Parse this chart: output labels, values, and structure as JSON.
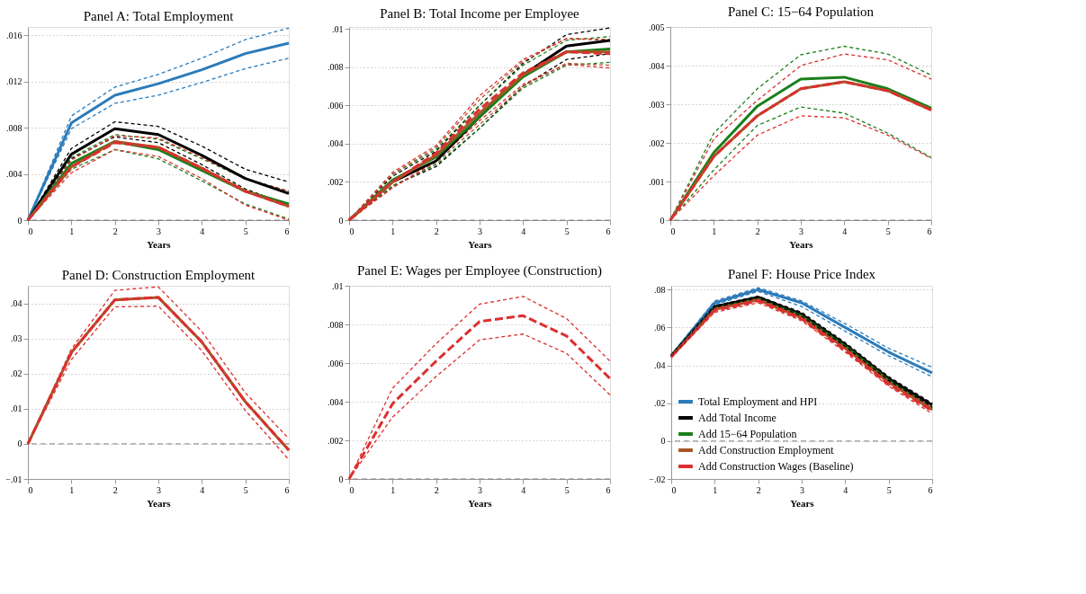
{
  "chart_data": [
    {
      "type": "line",
      "title": "Panel A: Total Employment",
      "xlabel": "Years",
      "x": [
        0,
        1,
        2,
        3,
        4,
        5,
        6
      ],
      "xlim": [
        0,
        6
      ],
      "xticks": [
        0,
        1,
        2,
        3,
        4,
        5,
        6
      ],
      "ylim": [
        0,
        0.0167
      ],
      "yticks": [
        0,
        {
          "value": 0.004,
          "label": ".004"
        },
        {
          "value": 0.008,
          "label": ".008"
        },
        {
          "value": 0.012,
          "label": ".012"
        },
        {
          "value": 0.016,
          "label": ".016"
        }
      ],
      "grid": "y",
      "ref_lines": [
        {
          "axis": "y",
          "value": 0,
          "color": "#808080",
          "line_style": "dashed"
        }
      ],
      "series": [
        {
          "color": "#2b7bba",
          "line_style": "dotted",
          "values": [
            0,
            0.0079,
            0.0101,
            0.0108,
            0.0119,
            0.0131,
            0.014
          ]
        },
        {
          "color": "#2b7bba",
          "line_style": "dotted",
          "values": [
            0,
            0.009,
            0.0115,
            0.0126,
            0.014,
            0.0156,
            0.0166
          ]
        },
        {
          "color": "#000000",
          "line_style": "dotted",
          "values": [
            0,
            0.0053,
            0.0072,
            0.0067,
            0.0048,
            0.0027,
            0.0013
          ]
        },
        {
          "color": "#000000",
          "line_style": "dotted",
          "values": [
            0,
            0.0062,
            0.0085,
            0.0081,
            0.0064,
            0.0044,
            0.0033
          ]
        },
        {
          "color": "#1a7f1a",
          "line_style": "dotted",
          "values": [
            0,
            0.0044,
            0.0061,
            0.0053,
            0.0034,
            0.0014,
            0.0001
          ]
        },
        {
          "color": "#1a7f1a",
          "line_style": "dotted",
          "values": [
            0,
            0.0054,
            0.0074,
            0.007,
            0.0053,
            0.0036,
            0.0025
          ]
        },
        {
          "color": "#dc2f2f",
          "line_style": "dotted",
          "values": [
            0,
            0.0041,
            0.0061,
            0.0055,
            0.0036,
            0.0013,
            0.0
          ]
        },
        {
          "color": "#dc2f2f",
          "line_style": "dotted",
          "values": [
            0,
            0.0052,
            0.0073,
            0.0071,
            0.0054,
            0.0036,
            0.0025
          ]
        },
        {
          "color": "#2b7bba",
          "line_style": "solid",
          "values": [
            0,
            0.0084,
            0.0108,
            0.0118,
            0.013,
            0.0144,
            0.0153
          ]
        },
        {
          "color": "#000000",
          "line_style": "solid",
          "values": [
            0,
            0.0057,
            0.0079,
            0.0074,
            0.0056,
            0.0036,
            0.0023
          ]
        },
        {
          "color": "#1a7f1a",
          "line_style": "solid",
          "values": [
            0,
            0.0049,
            0.0068,
            0.0061,
            0.0043,
            0.0025,
            0.0014
          ]
        },
        {
          "color": "#a65628",
          "line_style": "solid",
          "values": [
            0,
            0.0046,
            0.0068,
            0.0063,
            0.0045,
            0.0025,
            0.0012
          ]
        },
        {
          "color": "#dc2f2f",
          "line_style": "dashed",
          "values": [
            0,
            0.0046,
            0.0067,
            0.0063,
            0.0045,
            0.0025,
            0.0012
          ]
        }
      ]
    },
    {
      "type": "line",
      "title": "Panel B: Total Income per Employee",
      "xlabel": "Years",
      "x": [
        0,
        1,
        2,
        3,
        4,
        5,
        6
      ],
      "xlim": [
        0,
        6
      ],
      "xticks": [
        0,
        1,
        2,
        3,
        4,
        5,
        6
      ],
      "ylim": [
        0,
        0.0101
      ],
      "yticks": [
        0,
        {
          "value": 0.002,
          "label": ".002"
        },
        {
          "value": 0.004,
          "label": ".004"
        },
        {
          "value": 0.006,
          "label": ".006"
        },
        {
          "value": 0.008,
          "label": ".008"
        },
        {
          "value": 0.01,
          "label": ".01"
        }
      ],
      "grid": "y",
      "ref_lines": [
        {
          "axis": "y",
          "value": 0,
          "color": "#808080",
          "line_style": "dashed"
        }
      ],
      "series": [
        {
          "color": "#000000",
          "line_style": "dotted",
          "values": [
            0,
            0.0018,
            0.0028,
            0.0048,
            0.007,
            0.0084,
            0.0087
          ]
        },
        {
          "color": "#000000",
          "line_style": "dotted",
          "values": [
            0,
            0.0023,
            0.0036,
            0.006,
            0.0082,
            0.0097,
            0.01005
          ]
        },
        {
          "color": "#1a7f1a",
          "line_style": "dotted",
          "values": [
            0,
            0.0018,
            0.0029,
            0.0048,
            0.0069,
            0.0081,
            0.00825
          ]
        },
        {
          "color": "#1a7f1a",
          "line_style": "dotted",
          "values": [
            0,
            0.0024,
            0.0037,
            0.006,
            0.0081,
            0.0094,
            0.0096
          ]
        },
        {
          "color": "#a65628",
          "line_style": "dotted",
          "values": [
            0,
            0.0017,
            0.003,
            0.005,
            0.007,
            0.0082,
            0.0081
          ]
        },
        {
          "color": "#a65628",
          "line_style": "dotted",
          "values": [
            0,
            0.0024,
            0.0038,
            0.0063,
            0.0083,
            0.0095,
            0.00945
          ]
        },
        {
          "color": "#dc2f2f",
          "line_style": "dotted",
          "values": [
            0,
            0.0017,
            0.0031,
            0.0052,
            0.0071,
            0.00815,
            0.00795
          ]
        },
        {
          "color": "#dc2f2f",
          "line_style": "dotted",
          "values": [
            0,
            0.0025,
            0.0039,
            0.0065,
            0.0084,
            0.0095,
            0.0094
          ]
        },
        {
          "color": "#000000",
          "line_style": "solid",
          "values": [
            0,
            0.002,
            0.0031,
            0.0054,
            0.0076,
            0.0091,
            0.0094
          ]
        },
        {
          "color": "#1a7f1a",
          "line_style": "solid",
          "values": [
            0,
            0.0021,
            0.0033,
            0.0054,
            0.0075,
            0.0088,
            0.00895
          ]
        },
        {
          "color": "#a65628",
          "line_style": "solid",
          "values": [
            0,
            0.002,
            0.0034,
            0.0056,
            0.0076,
            0.0088,
            0.0088
          ]
        },
        {
          "color": "#dc2f2f",
          "line_style": "dashed",
          "values": [
            0,
            0.002,
            0.0035,
            0.0058,
            0.0077,
            0.0088,
            0.0087
          ]
        }
      ]
    },
    {
      "type": "line",
      "title": "Panel C: 15−64 Population",
      "xlabel": "Years",
      "x": [
        0,
        1,
        2,
        3,
        4,
        5,
        6
      ],
      "xlim": [
        0,
        6
      ],
      "xticks": [
        0,
        1,
        2,
        3,
        4,
        5,
        6
      ],
      "ylim": [
        0,
        0.005
      ],
      "yticks": [
        0,
        {
          "value": 0.001,
          "label": ".001"
        },
        {
          "value": 0.002,
          "label": ".002"
        },
        {
          "value": 0.003,
          "label": ".003"
        },
        {
          "value": 0.004,
          "label": ".004"
        },
        {
          "value": 0.005,
          "label": ".005"
        }
      ],
      "grid": "y",
      "ref_lines": [
        {
          "axis": "y",
          "value": 0,
          "color": "#808080",
          "line_style": "dashed"
        }
      ],
      "series": [
        {
          "color": "#1a7f1a",
          "line_style": "dotted",
          "values": [
            0,
            0.0013,
            0.00245,
            0.00293,
            0.00277,
            0.00225,
            0.00162
          ]
        },
        {
          "color": "#1a7f1a",
          "line_style": "dotted",
          "values": [
            0,
            0.00225,
            0.0034,
            0.00428,
            0.0045,
            0.0043,
            0.00375
          ]
        },
        {
          "color": "#dc2f2f",
          "line_style": "dotted",
          "values": [
            0,
            0.00115,
            0.0022,
            0.0027,
            0.00265,
            0.0022,
            0.0016
          ]
        },
        {
          "color": "#dc2f2f",
          "line_style": "dotted",
          "values": [
            0,
            0.0021,
            0.0031,
            0.004,
            0.0043,
            0.00415,
            0.00365
          ]
        },
        {
          "color": "#1a7f1a",
          "line_style": "solid",
          "values": [
            0,
            0.00175,
            0.00295,
            0.00365,
            0.0037,
            0.0034,
            0.0029
          ]
        },
        {
          "color": "#a65628",
          "line_style": "solid",
          "values": [
            0,
            0.00165,
            0.0027,
            0.0034,
            0.00358,
            0.00335,
            0.00285
          ]
        },
        {
          "color": "#dc2f2f",
          "line_style": "dashed",
          "values": [
            0,
            0.00165,
            0.0027,
            0.0034,
            0.00358,
            0.00335,
            0.00285
          ]
        }
      ]
    },
    {
      "type": "line",
      "title": "Panel D: Construction Employment",
      "xlabel": "Years",
      "x": [
        0,
        1,
        2,
        3,
        4,
        5,
        6
      ],
      "xlim": [
        0,
        6
      ],
      "xticks": [
        0,
        1,
        2,
        3,
        4,
        5,
        6
      ],
      "ylim": [
        -0.01,
        0.045
      ],
      "yticks": [
        {
          "value": -0.01,
          "label": "−.01"
        },
        0,
        {
          "value": 0.01,
          "label": ".01"
        },
        {
          "value": 0.02,
          "label": ".02"
        },
        {
          "value": 0.03,
          "label": ".03"
        },
        {
          "value": 0.04,
          "label": ".04"
        }
      ],
      "grid": "y",
      "ref_lines": [
        {
          "axis": "y",
          "value": 0,
          "color": "#808080",
          "line_style": "dashed"
        }
      ],
      "series": [
        {
          "color": "#dc2f2f",
          "line_style": "dotted",
          "values": [
            0,
            0.024,
            0.039,
            0.0392,
            0.0265,
            0.0095,
            -0.0045
          ]
        },
        {
          "color": "#dc2f2f",
          "line_style": "dotted",
          "values": [
            0,
            0.027,
            0.0437,
            0.0447,
            0.032,
            0.0145,
            0.0015
          ]
        },
        {
          "color": "#a65628",
          "line_style": "solid",
          "values": [
            0,
            0.026,
            0.041,
            0.0417,
            0.029,
            0.012,
            -0.0018
          ]
        },
        {
          "color": "#dc2f2f",
          "line_style": "dashed",
          "values": [
            0,
            0.026,
            0.041,
            0.0417,
            0.029,
            0.012,
            -0.0018
          ]
        }
      ]
    },
    {
      "type": "line",
      "title": "Panel E: Wages per Employee (Construction)",
      "xlabel": "Years",
      "x": [
        0,
        1,
        2,
        3,
        4,
        5,
        6
      ],
      "xlim": [
        0,
        6
      ],
      "xticks": [
        0,
        1,
        2,
        3,
        4,
        5,
        6
      ],
      "ylim": [
        0,
        0.01
      ],
      "yticks": [
        0,
        {
          "value": 0.002,
          "label": ".002"
        },
        {
          "value": 0.004,
          "label": ".004"
        },
        {
          "value": 0.006,
          "label": ".006"
        },
        {
          "value": 0.008,
          "label": ".008"
        },
        {
          "value": 0.01,
          "label": ".01"
        }
      ],
      "grid": "y",
      "ref_lines": [
        {
          "axis": "y",
          "value": 0,
          "color": "#808080",
          "line_style": "dashed"
        }
      ],
      "series": [
        {
          "color": "#dc2f2f",
          "line_style": "dotted",
          "values": [
            0,
            0.0032,
            0.0053,
            0.0072,
            0.0075,
            0.0065,
            0.00435
          ]
        },
        {
          "color": "#dc2f2f",
          "line_style": "dotted",
          "values": [
            0,
            0.0047,
            0.007,
            0.00905,
            0.00945,
            0.0083,
            0.0061
          ]
        },
        {
          "color": "#dc2f2f",
          "line_style": "dashed",
          "values": [
            0,
            0.0039,
            0.0061,
            0.00815,
            0.00845,
            0.0074,
            0.0052
          ]
        }
      ]
    },
    {
      "type": "line",
      "title": "Panel F: House Price Index",
      "xlabel": "Years",
      "x": [
        0,
        1,
        2,
        3,
        4,
        5,
        6
      ],
      "xlim": [
        0,
        6
      ],
      "xticks": [
        0,
        1,
        2,
        3,
        4,
        5,
        6
      ],
      "ylim": [
        -0.02,
        0.082
      ],
      "yticks": [
        {
          "value": -0.02,
          "label": "−.02"
        },
        0,
        {
          "value": 0.02,
          "label": ".02"
        },
        {
          "value": 0.04,
          "label": ".04"
        },
        {
          "value": 0.06,
          "label": ".06"
        },
        {
          "value": 0.08,
          "label": ".08"
        }
      ],
      "grid": "y",
      "legend": "bottom left",
      "ref_lines": [
        {
          "axis": "y",
          "value": 0,
          "color": "#808080",
          "line_style": "dashed"
        }
      ],
      "series": [
        {
          "name": "Total Employment and HPI",
          "color": "#2b7bba",
          "line_style": "solid",
          "values": [
            0.045,
            0.073,
            0.08,
            0.073,
            0.06,
            0.047,
            0.036
          ]
        },
        {
          "name": "Add Total Income",
          "color": "#000000",
          "line_style": "solid",
          "values": [
            0.045,
            0.071,
            0.076,
            0.067,
            0.051,
            0.033,
            0.019
          ]
        },
        {
          "name": "Add 15−64 Population",
          "color": "#1a7f1a",
          "line_style": "solid",
          "values": [
            0.045,
            0.07,
            0.075,
            0.066,
            0.05,
            0.032,
            0.017
          ]
        },
        {
          "name": "Add Construction Employment",
          "color": "#a65628",
          "line_style": "solid",
          "values": [
            0.0445,
            0.0695,
            0.0745,
            0.065,
            0.049,
            0.031,
            0.0165
          ]
        },
        {
          "name": "Add Construction Wages (Baseline)",
          "color": "#dc2f2f",
          "line_style": "dashed",
          "values": [
            0.0445,
            0.069,
            0.074,
            0.0645,
            0.048,
            0.03,
            0.016
          ]
        },
        {
          "color": "#2b7bba",
          "line_style": "dotted",
          "values": [
            0.0445,
            0.072,
            0.079,
            0.071,
            0.058,
            0.045,
            0.034
          ]
        },
        {
          "color": "#2b7bba",
          "line_style": "dotted",
          "values": [
            0.0455,
            0.074,
            0.081,
            0.074,
            0.062,
            0.049,
            0.039
          ]
        },
        {
          "color": "#000000",
          "line_style": "dotted",
          "values": [
            0.0445,
            0.0705,
            0.0755,
            0.066,
            0.05,
            0.032,
            0.018
          ]
        },
        {
          "color": "#000000",
          "line_style": "dotted",
          "values": [
            0.0455,
            0.0715,
            0.0765,
            0.068,
            0.052,
            0.034,
            0.02
          ]
        },
        {
          "color": "#dc2f2f",
          "line_style": "dotted",
          "values": [
            0.044,
            0.068,
            0.073,
            0.0635,
            0.047,
            0.029,
            0.0145
          ]
        },
        {
          "color": "#dc2f2f",
          "line_style": "dotted",
          "values": [
            0.045,
            0.07,
            0.075,
            0.0655,
            0.049,
            0.031,
            0.0175
          ]
        }
      ]
    }
  ]
}
